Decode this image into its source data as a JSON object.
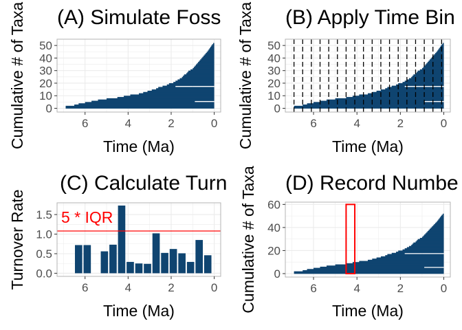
{
  "colors": {
    "bar": "#0F4470",
    "grid": "#EBEBEB",
    "panel_border": "#B3B3B3",
    "tick_text": "#4D4D4D",
    "threshold": "#FF0000",
    "bin_line": "#000000"
  },
  "chart_data": [
    {
      "type": "stacked-range",
      "title": "(A) Simulate Foss",
      "xlabel": "Time (Ma)",
      "ylabel": "Cumulative # of Taxa",
      "xlim": [
        7.3,
        -0.3
      ],
      "ylim": [
        -3,
        55
      ],
      "xticks": [
        6,
        4,
        2,
        0
      ],
      "yticks": [
        0,
        10,
        20,
        30,
        40,
        50
      ],
      "grid": true
    },
    {
      "type": "stacked-range",
      "title": "(B) Apply Time Bin",
      "xlabel": "Time (Ma)",
      "ylabel": "Cumulative # of Taxa",
      "xlim": [
        7.3,
        -0.3
      ],
      "ylim": [
        -3,
        55
      ],
      "xticks": [
        6,
        4,
        2,
        0
      ],
      "yticks": [
        0,
        10,
        20,
        30,
        40,
        50
      ],
      "grid": true,
      "bin_boundaries": [
        6.9,
        6.5,
        6.1,
        5.7,
        5.3,
        4.9,
        4.5,
        4.1,
        3.7,
        3.3,
        2.9,
        2.5,
        2.1,
        1.7,
        1.3,
        0.9,
        0.5,
        0.1
      ]
    },
    {
      "type": "bar",
      "title": "(C) Calculate Turn",
      "xlabel": "Time (Ma)",
      "ylabel": "Turnover Rate",
      "xlim": [
        7.3,
        -0.3
      ],
      "ylim": [
        -0.08,
        1.8
      ],
      "xticks": [
        6,
        4,
        2,
        0
      ],
      "yticks": [
        0.0,
        0.5,
        1.0,
        1.5
      ],
      "grid": true,
      "bar_width": 0.34,
      "x": [
        6.3,
        5.9,
        5.1,
        4.7,
        4.3,
        3.9,
        3.5,
        3.1,
        2.7,
        2.3,
        1.9,
        1.5,
        1.1,
        0.7,
        0.3
      ],
      "values": [
        0.72,
        0.72,
        0.56,
        0.73,
        1.73,
        0.29,
        0.25,
        0.24,
        1.02,
        0.52,
        0.62,
        0.51,
        0.29,
        0.85,
        0.46
      ],
      "threshold": 1.08,
      "annotation": "5  * IQR"
    },
    {
      "type": "stacked-range",
      "title": "(D) Record Numbe",
      "xlabel": "Time (Ma)",
      "ylabel": "Cumulative # of Taxa",
      "xlim": [
        7.3,
        -0.3
      ],
      "ylim": [
        -3,
        62
      ],
      "xticks": [
        6,
        4,
        2,
        0
      ],
      "yticks": [
        0,
        20,
        40,
        60
      ],
      "grid": true,
      "highlight": {
        "x": [
          4.5,
          4.1
        ],
        "y": [
          0,
          60
        ]
      }
    }
  ],
  "taxa_ranges": {
    "note_units": "start and end in Ma; y is cumulative taxon index",
    "ranges": [
      {
        "y": 0,
        "start": 6.9,
        "end": 0.0
      },
      {
        "y": 1,
        "start": 6.9,
        "end": 0.0
      },
      {
        "y": 2,
        "start": 6.5,
        "end": 0.0
      },
      {
        "y": 3,
        "start": 6.3,
        "end": 0.0
      },
      {
        "y": 4,
        "start": 6.0,
        "end": 0.0
      },
      {
        "y": 5,
        "start": 5.7,
        "end": 0.9
      },
      {
        "y": 6,
        "start": 5.4,
        "end": 0.0
      },
      {
        "y": 7,
        "start": 5.0,
        "end": 0.0
      },
      {
        "y": 8,
        "start": 4.5,
        "end": 0.0
      },
      {
        "y": 9,
        "start": 4.2,
        "end": 0.0
      },
      {
        "y": 10,
        "start": 3.9,
        "end": 0.0
      },
      {
        "y": 11,
        "start": 3.5,
        "end": 0.0
      },
      {
        "y": 12,
        "start": 3.3,
        "end": 0.0
      },
      {
        "y": 13,
        "start": 3.1,
        "end": 0.0
      },
      {
        "y": 14,
        "start": 2.9,
        "end": 0.0
      },
      {
        "y": 15,
        "start": 2.7,
        "end": 0.0
      },
      {
        "y": 16,
        "start": 2.6,
        "end": 0.0
      },
      {
        "y": 17,
        "start": 2.4,
        "end": 1.8
      },
      {
        "y": 18,
        "start": 2.2,
        "end": 0.0
      },
      {
        "y": 19,
        "start": 2.1,
        "end": 0.0
      },
      {
        "y": 20,
        "start": 1.9,
        "end": 0.0
      },
      {
        "y": 21,
        "start": 1.8,
        "end": 0.0
      },
      {
        "y": 22,
        "start": 1.7,
        "end": 0.0
      },
      {
        "y": 23,
        "start": 1.6,
        "end": 0.0
      },
      {
        "y": 24,
        "start": 1.5,
        "end": 0.0
      },
      {
        "y": 25,
        "start": 1.45,
        "end": 0.0
      },
      {
        "y": 26,
        "start": 1.4,
        "end": 0.0
      },
      {
        "y": 27,
        "start": 1.3,
        "end": 0.0
      },
      {
        "y": 28,
        "start": 1.25,
        "end": 0.0
      },
      {
        "y": 29,
        "start": 1.2,
        "end": 0.0
      },
      {
        "y": 30,
        "start": 1.1,
        "end": 0.0
      },
      {
        "y": 31,
        "start": 1.0,
        "end": 0.0
      },
      {
        "y": 32,
        "start": 0.95,
        "end": 0.0
      },
      {
        "y": 33,
        "start": 0.9,
        "end": 0.0
      },
      {
        "y": 34,
        "start": 0.85,
        "end": 0.0
      },
      {
        "y": 35,
        "start": 0.8,
        "end": 0.0
      },
      {
        "y": 36,
        "start": 0.75,
        "end": 0.0
      },
      {
        "y": 37,
        "start": 0.7,
        "end": 0.0
      },
      {
        "y": 38,
        "start": 0.65,
        "end": 0.0
      },
      {
        "y": 39,
        "start": 0.6,
        "end": 0.0
      },
      {
        "y": 40,
        "start": 0.55,
        "end": 0.0
      },
      {
        "y": 41,
        "start": 0.5,
        "end": 0.0
      },
      {
        "y": 42,
        "start": 0.45,
        "end": 0.0
      },
      {
        "y": 43,
        "start": 0.4,
        "end": 0.0
      },
      {
        "y": 44,
        "start": 0.35,
        "end": 0.0
      },
      {
        "y": 45,
        "start": 0.3,
        "end": 0.0
      },
      {
        "y": 46,
        "start": 0.26,
        "end": 0.0
      },
      {
        "y": 47,
        "start": 0.22,
        "end": 0.0
      },
      {
        "y": 48,
        "start": 0.18,
        "end": 0.0
      },
      {
        "y": 49,
        "start": 0.14,
        "end": 0.0
      },
      {
        "y": 50,
        "start": 0.1,
        "end": 0.0
      },
      {
        "y": 51,
        "start": 0.05,
        "end": 0.0
      }
    ]
  }
}
